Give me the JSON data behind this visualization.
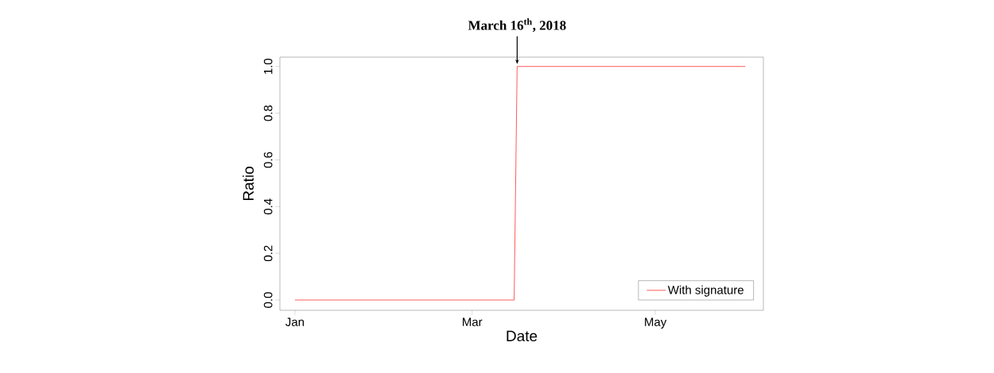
{
  "chart_data": {
    "type": "line",
    "xlabel": "Date",
    "ylabel": "Ratio",
    "x": [
      "2018-01-01",
      "2018-03-15",
      "2018-03-16",
      "2018-05-31"
    ],
    "series": [
      {
        "name": "With signature",
        "color": "#ff5a5a",
        "values": [
          0,
          0,
          1,
          1
        ]
      }
    ],
    "xlim": [
      "2017-12-27",
      "2018-06-06"
    ],
    "ylim": [
      -0.044,
      1.04
    ],
    "xticks": [
      {
        "value": "2018-01-01",
        "label": "Jan"
      },
      {
        "value": "2018-03-01",
        "label": "Mar"
      },
      {
        "value": "2018-05-01",
        "label": "May"
      }
    ],
    "yticks": [
      {
        "value": 0,
        "label": "0.0"
      },
      {
        "value": 0.2,
        "label": "0.2"
      },
      {
        "value": 0.4,
        "label": "0.4"
      },
      {
        "value": 0.6,
        "label": "0.6"
      },
      {
        "value": 0.8,
        "label": "0.8"
      },
      {
        "value": 1,
        "label": "1.0"
      }
    ],
    "annotations": [
      {
        "text": "March 16$^{th}$, 2018",
        "x": "2018-03-16",
        "y": 1
      }
    ],
    "legend": "bottom right",
    "grid": false,
    "marker": "none",
    "line_style": "solid"
  }
}
